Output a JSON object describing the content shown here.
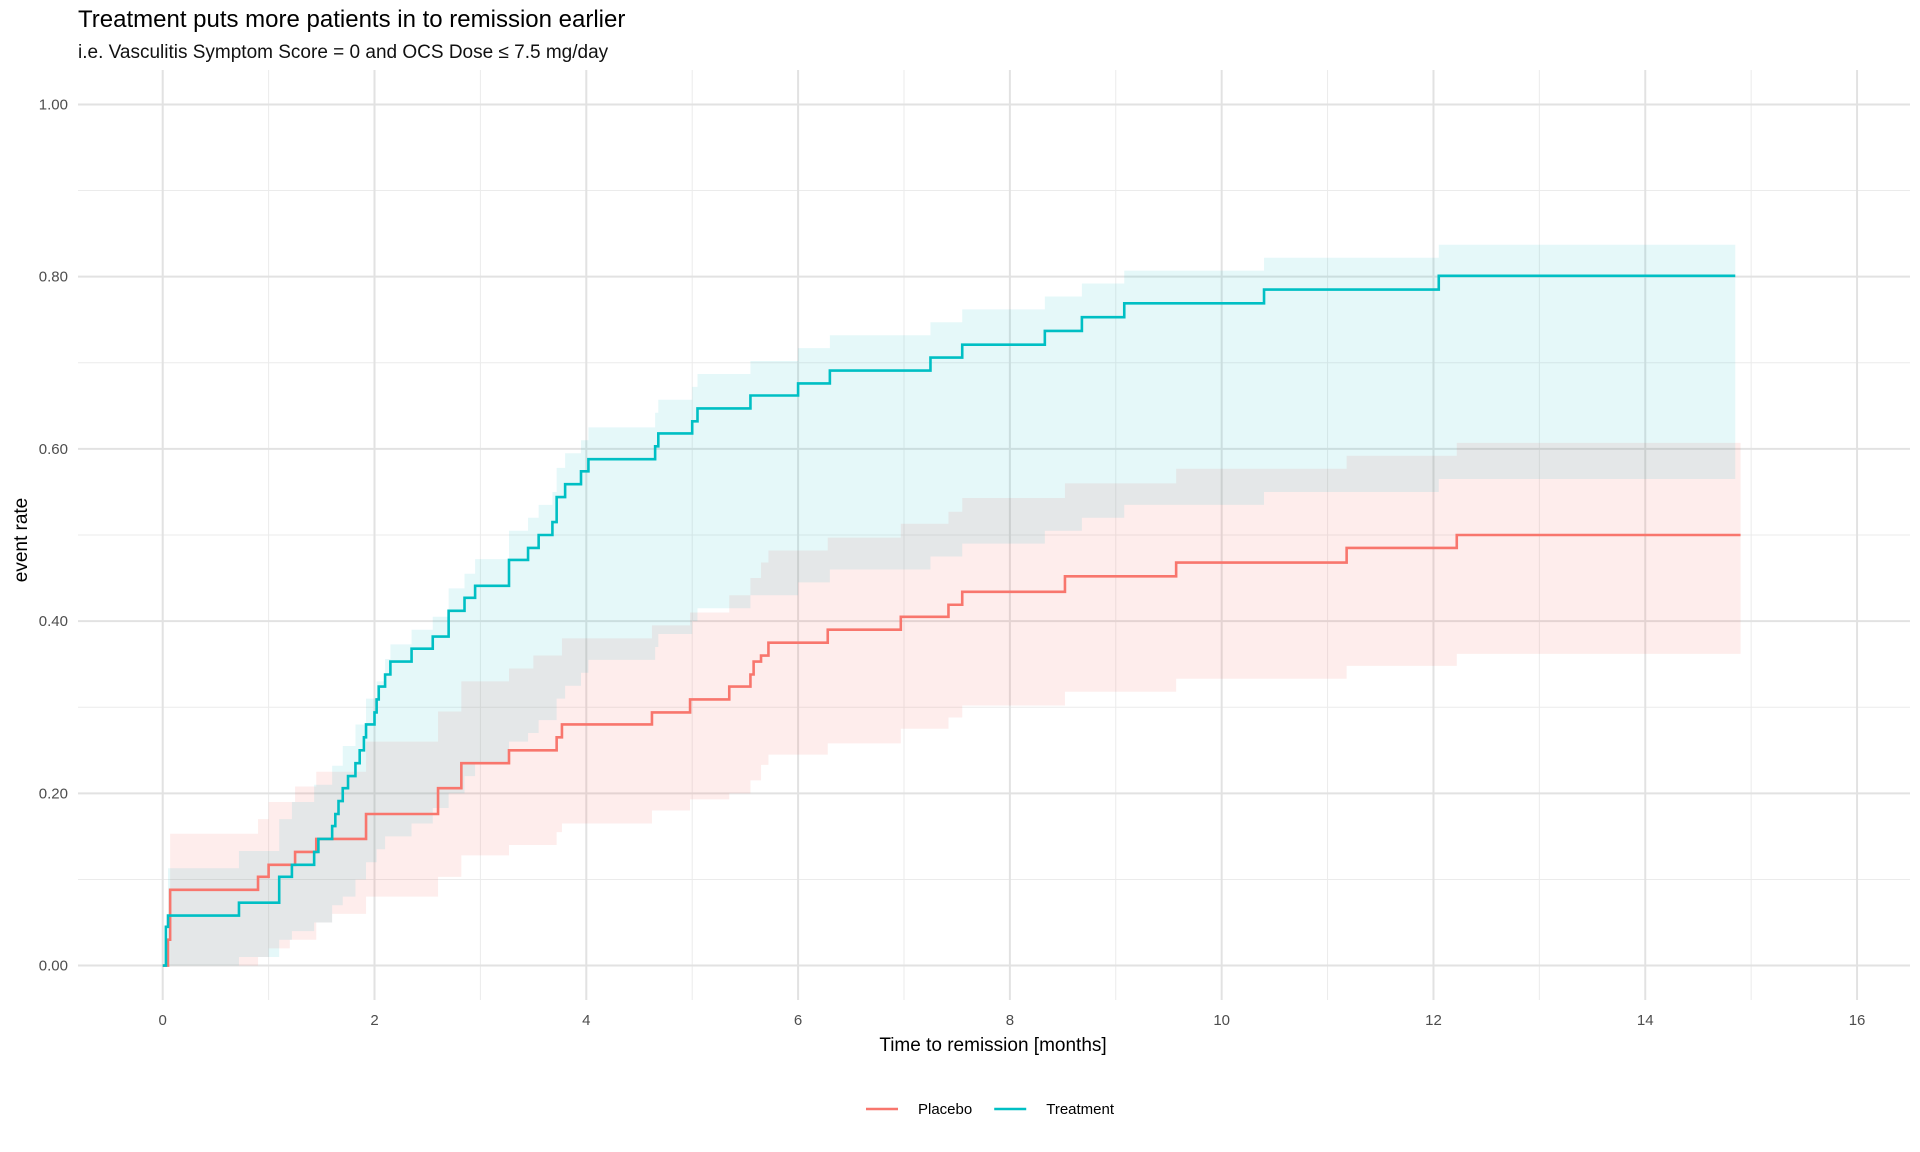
{
  "chart_data": {
    "type": "line",
    "subtype": "kaplan-meier step curves with confidence bands",
    "title": "Treatment puts more patients in to remission earlier",
    "subtitle": "i.e. Vasculitis Symptom Score = 0 and OCS Dose ≤ 7.5 mg/day",
    "xlabel": "Time to remission [months]",
    "ylabel": "event rate",
    "xlim": [
      -0.8,
      16.5
    ],
    "ylim": [
      -0.04,
      1.04
    ],
    "x_ticks": [
      0,
      2,
      4,
      6,
      8,
      10,
      12,
      14,
      16
    ],
    "x_tick_labels": [
      "0",
      "2",
      "4",
      "6",
      "8",
      "10",
      "12",
      "14",
      "16"
    ],
    "y_ticks": [
      0,
      0.2,
      0.4,
      0.6,
      0.8,
      1.0
    ],
    "y_tick_labels": [
      "0.00",
      "0.20",
      "0.40",
      "0.60",
      "0.80",
      "1.00"
    ],
    "grid": true,
    "legend_position": "bottom",
    "series": [
      {
        "name": "Placebo",
        "color": "#F8766D",
        "band_opacity": 0.13,
        "points": [
          [
            0,
            0
          ],
          [
            0.05,
            0.03
          ],
          [
            0.07,
            0.088
          ],
          [
            0.9,
            0.103
          ],
          [
            1.0,
            0.117
          ],
          [
            1.25,
            0.132
          ],
          [
            1.45,
            0.147
          ],
          [
            1.92,
            0.176
          ],
          [
            2.6,
            0.206
          ],
          [
            2.82,
            0.235
          ],
          [
            3.27,
            0.25
          ],
          [
            3.72,
            0.265
          ],
          [
            3.77,
            0.28
          ],
          [
            4.62,
            0.294
          ],
          [
            4.98,
            0.309
          ],
          [
            5.35,
            0.324
          ],
          [
            5.55,
            0.338
          ],
          [
            5.58,
            0.353
          ],
          [
            5.65,
            0.36
          ],
          [
            5.72,
            0.375
          ],
          [
            6.28,
            0.39
          ],
          [
            6.97,
            0.405
          ],
          [
            7.42,
            0.419
          ],
          [
            7.55,
            0.434
          ],
          [
            8.52,
            0.452
          ],
          [
            9.57,
            0.468
          ],
          [
            11.18,
            0.485
          ],
          [
            12.22,
            0.5
          ],
          [
            14.9,
            0.5
          ]
        ],
        "lower": [
          [
            0,
            0
          ],
          [
            0.07,
            0.0
          ],
          [
            0.9,
            0.01
          ],
          [
            1.0,
            0.02
          ],
          [
            1.2,
            0.03
          ],
          [
            1.45,
            0.05
          ],
          [
            1.6,
            0.06
          ],
          [
            1.92,
            0.08
          ],
          [
            2.6,
            0.103
          ],
          [
            2.82,
            0.128
          ],
          [
            3.27,
            0.14
          ],
          [
            3.72,
            0.155
          ],
          [
            3.77,
            0.165
          ],
          [
            4.62,
            0.18
          ],
          [
            4.98,
            0.193
          ],
          [
            5.35,
            0.2
          ],
          [
            5.55,
            0.215
          ],
          [
            5.65,
            0.233
          ],
          [
            5.72,
            0.245
          ],
          [
            6.28,
            0.258
          ],
          [
            6.97,
            0.275
          ],
          [
            7.42,
            0.288
          ],
          [
            7.55,
            0.302
          ],
          [
            8.52,
            0.318
          ],
          [
            9.57,
            0.333
          ],
          [
            11.18,
            0.348
          ],
          [
            12.22,
            0.362
          ],
          [
            14.9,
            0.362
          ]
        ],
        "upper": [
          [
            0,
            0
          ],
          [
            0.07,
            0.153
          ],
          [
            0.9,
            0.17
          ],
          [
            1.0,
            0.19
          ],
          [
            1.25,
            0.208
          ],
          [
            1.45,
            0.225
          ],
          [
            1.92,
            0.26
          ],
          [
            2.6,
            0.295
          ],
          [
            2.82,
            0.33
          ],
          [
            3.27,
            0.345
          ],
          [
            3.5,
            0.36
          ],
          [
            3.77,
            0.38
          ],
          [
            4.62,
            0.395
          ],
          [
            4.98,
            0.41
          ],
          [
            5.35,
            0.43
          ],
          [
            5.55,
            0.45
          ],
          [
            5.65,
            0.468
          ],
          [
            5.72,
            0.482
          ],
          [
            6.28,
            0.497
          ],
          [
            6.97,
            0.513
          ],
          [
            7.42,
            0.527
          ],
          [
            7.55,
            0.543
          ],
          [
            8.52,
            0.56
          ],
          [
            9.57,
            0.577
          ],
          [
            11.18,
            0.592
          ],
          [
            12.22,
            0.607
          ],
          [
            14.9,
            0.607
          ]
        ]
      },
      {
        "name": "Treatment",
        "color": "#00BFC4",
        "band_opacity": 0.1,
        "points": [
          [
            0,
            0
          ],
          [
            0.03,
            0.045
          ],
          [
            0.05,
            0.058
          ],
          [
            0.72,
            0.073
          ],
          [
            1.1,
            0.103
          ],
          [
            1.22,
            0.117
          ],
          [
            1.43,
            0.132
          ],
          [
            1.47,
            0.147
          ],
          [
            1.6,
            0.162
          ],
          [
            1.63,
            0.176
          ],
          [
            1.66,
            0.191
          ],
          [
            1.7,
            0.206
          ],
          [
            1.75,
            0.22
          ],
          [
            1.82,
            0.235
          ],
          [
            1.86,
            0.25
          ],
          [
            1.9,
            0.265
          ],
          [
            1.92,
            0.28
          ],
          [
            2.0,
            0.294
          ],
          [
            2.02,
            0.309
          ],
          [
            2.04,
            0.324
          ],
          [
            2.1,
            0.338
          ],
          [
            2.15,
            0.353
          ],
          [
            2.35,
            0.368
          ],
          [
            2.55,
            0.382
          ],
          [
            2.7,
            0.412
          ],
          [
            2.85,
            0.427
          ],
          [
            2.95,
            0.441
          ],
          [
            3.27,
            0.471
          ],
          [
            3.45,
            0.485
          ],
          [
            3.55,
            0.5
          ],
          [
            3.68,
            0.515
          ],
          [
            3.72,
            0.544
          ],
          [
            3.8,
            0.559
          ],
          [
            3.95,
            0.574
          ],
          [
            4.02,
            0.588
          ],
          [
            4.65,
            0.603
          ],
          [
            4.68,
            0.618
          ],
          [
            5.0,
            0.632
          ],
          [
            5.05,
            0.647
          ],
          [
            5.55,
            0.662
          ],
          [
            6.0,
            0.676
          ],
          [
            6.3,
            0.691
          ],
          [
            7.25,
            0.706
          ],
          [
            7.55,
            0.721
          ],
          [
            8.33,
            0.737
          ],
          [
            8.68,
            0.753
          ],
          [
            9.08,
            0.769
          ],
          [
            10.4,
            0.785
          ],
          [
            12.05,
            0.801
          ],
          [
            14.85,
            0.801
          ]
        ],
        "lower": [
          [
            0,
            0
          ],
          [
            0.05,
            0.0
          ],
          [
            0.72,
            0.01
          ],
          [
            1.1,
            0.03
          ],
          [
            1.22,
            0.04
          ],
          [
            1.43,
            0.05
          ],
          [
            1.6,
            0.07
          ],
          [
            1.7,
            0.08
          ],
          [
            1.82,
            0.1
          ],
          [
            1.92,
            0.12
          ],
          [
            2.02,
            0.135
          ],
          [
            2.1,
            0.15
          ],
          [
            2.35,
            0.165
          ],
          [
            2.55,
            0.183
          ],
          [
            2.7,
            0.2
          ],
          [
            2.85,
            0.22
          ],
          [
            2.95,
            0.235
          ],
          [
            3.27,
            0.26
          ],
          [
            3.45,
            0.27
          ],
          [
            3.55,
            0.285
          ],
          [
            3.72,
            0.31
          ],
          [
            3.8,
            0.325
          ],
          [
            3.95,
            0.34
          ],
          [
            4.02,
            0.355
          ],
          [
            4.65,
            0.37
          ],
          [
            4.68,
            0.385
          ],
          [
            5.0,
            0.4
          ],
          [
            5.05,
            0.415
          ],
          [
            5.55,
            0.43
          ],
          [
            6.0,
            0.445
          ],
          [
            6.3,
            0.46
          ],
          [
            7.25,
            0.475
          ],
          [
            7.55,
            0.49
          ],
          [
            8.33,
            0.505
          ],
          [
            8.68,
            0.52
          ],
          [
            9.08,
            0.535
          ],
          [
            10.4,
            0.55
          ],
          [
            12.05,
            0.565
          ],
          [
            14.85,
            0.565
          ]
        ],
        "upper": [
          [
            0,
            0
          ],
          [
            0.05,
            0.113
          ],
          [
            0.72,
            0.133
          ],
          [
            1.1,
            0.17
          ],
          [
            1.22,
            0.19
          ],
          [
            1.43,
            0.21
          ],
          [
            1.6,
            0.232
          ],
          [
            1.7,
            0.255
          ],
          [
            1.82,
            0.28
          ],
          [
            1.92,
            0.31
          ],
          [
            2.02,
            0.33
          ],
          [
            2.1,
            0.356
          ],
          [
            2.15,
            0.373
          ],
          [
            2.35,
            0.39
          ],
          [
            2.55,
            0.405
          ],
          [
            2.7,
            0.438
          ],
          [
            2.85,
            0.455
          ],
          [
            2.95,
            0.472
          ],
          [
            3.27,
            0.505
          ],
          [
            3.45,
            0.52
          ],
          [
            3.55,
            0.535
          ],
          [
            3.68,
            0.55
          ],
          [
            3.72,
            0.578
          ],
          [
            3.8,
            0.595
          ],
          [
            3.95,
            0.61
          ],
          [
            4.02,
            0.625
          ],
          [
            4.65,
            0.642
          ],
          [
            4.68,
            0.657
          ],
          [
            5.0,
            0.672
          ],
          [
            5.05,
            0.687
          ],
          [
            5.55,
            0.702
          ],
          [
            6.0,
            0.717
          ],
          [
            6.3,
            0.732
          ],
          [
            7.25,
            0.747
          ],
          [
            7.55,
            0.762
          ],
          [
            8.33,
            0.777
          ],
          [
            8.68,
            0.792
          ],
          [
            9.08,
            0.807
          ],
          [
            10.4,
            0.822
          ],
          [
            12.05,
            0.837
          ],
          [
            14.85,
            0.837
          ]
        ]
      }
    ]
  }
}
